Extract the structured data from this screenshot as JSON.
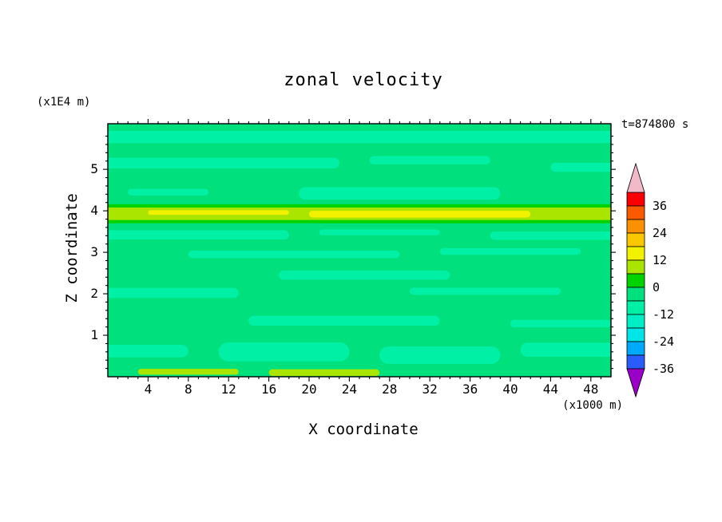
{
  "title": "zonal velocity",
  "annotations": {
    "time_label": "t=874800 s",
    "y_unit_label": "(x1E4 m)",
    "x_unit_label": "(x1000 m)"
  },
  "axes": {
    "xlabel": "X coordinate",
    "ylabel": "Z coordinate"
  },
  "chart_data": {
    "type": "heatmap",
    "title": "zonal velocity",
    "time_label": "t=874800 s",
    "xlabel": "X coordinate",
    "ylabel": "Z coordinate",
    "x_unit_label": "(x1000 m)",
    "y_unit_label": "(x1E4 m)",
    "xlim": [
      0,
      50
    ],
    "zlim": [
      0,
      6.1
    ],
    "grid": false,
    "x_ticks": [
      4,
      8,
      12,
      16,
      20,
      24,
      28,
      32,
      36,
      40,
      44,
      48
    ],
    "y_ticks": [
      1,
      2,
      3,
      4,
      5
    ],
    "colorbar": {
      "labels": [
        "36",
        "24",
        "12",
        "0",
        "-12",
        "-24",
        "-36"
      ],
      "arrow_top_color": "#F2B9C8",
      "arrow_bottom_color": "#9B00C8",
      "segments": [
        {
          "from": 36,
          "to": 42,
          "color": "#FB0000"
        },
        {
          "from": 30,
          "to": 36,
          "color": "#FB5A00"
        },
        {
          "from": 24,
          "to": 30,
          "color": "#FB9100"
        },
        {
          "from": 18,
          "to": 24,
          "color": "#FBC800"
        },
        {
          "from": 12,
          "to": 18,
          "color": "#F2F200"
        },
        {
          "from": 6,
          "to": 12,
          "color": "#AAE500"
        },
        {
          "from": 0,
          "to": 6,
          "color": "#00D300"
        },
        {
          "from": -6,
          "to": 0,
          "color": "#00E07D"
        },
        {
          "from": -12,
          "to": -6,
          "color": "#00F0A6"
        },
        {
          "from": -18,
          "to": -12,
          "color": "#00EEC6"
        },
        {
          "from": -24,
          "to": -18,
          "color": "#00E5E5"
        },
        {
          "from": -30,
          "to": -24,
          "color": "#00AAFB"
        },
        {
          "from": -36,
          "to": -30,
          "color": "#2A5CFB"
        }
      ]
    },
    "field": {
      "palette": {
        "base": {
          "level": "-6 to 0",
          "color": "#00E07D"
        },
        "light": {
          "level": "-12 to -6",
          "color": "#00F0A6"
        },
        "green": {
          "level": "0 to 6",
          "color": "#00D300"
        },
        "chartreuse": {
          "level": "6 to 12",
          "color": "#AAE500"
        },
        "yellow": {
          "level": "12 to 18",
          "color": "#F2F200"
        }
      },
      "base_fill": "base",
      "bands": [
        {
          "x0": -2,
          "x1": 52,
          "z": 5.78,
          "h": 0.3,
          "level": "light"
        },
        {
          "x0": -2,
          "x1": 23,
          "z": 5.15,
          "h": 0.26,
          "level": "light"
        },
        {
          "x0": 26,
          "x1": 38,
          "z": 5.22,
          "h": 0.2,
          "level": "light"
        },
        {
          "x0": 44,
          "x1": 52,
          "z": 5.05,
          "h": 0.22,
          "level": "light"
        },
        {
          "x0": 2,
          "x1": 10,
          "z": 4.45,
          "h": 0.16,
          "level": "light"
        },
        {
          "x0": 19,
          "x1": 39,
          "z": 4.42,
          "h": 0.3,
          "level": "light"
        },
        {
          "x0": -2,
          "x1": 52,
          "z": 3.93,
          "h": 0.46,
          "level": "green"
        },
        {
          "x0": -2,
          "x1": 52,
          "z": 3.93,
          "h": 0.3,
          "level": "chartreuse"
        },
        {
          "x0": 4,
          "x1": 18,
          "z": 3.96,
          "h": 0.11,
          "level": "yellow"
        },
        {
          "x0": 20,
          "x1": 42,
          "z": 3.92,
          "h": 0.16,
          "level": "yellow"
        },
        {
          "x0": -2,
          "x1": 18,
          "z": 3.42,
          "h": 0.22,
          "level": "light"
        },
        {
          "x0": 21,
          "x1": 33,
          "z": 3.48,
          "h": 0.14,
          "level": "light"
        },
        {
          "x0": 38,
          "x1": 52,
          "z": 3.4,
          "h": 0.2,
          "level": "light"
        },
        {
          "x0": 33,
          "x1": 47,
          "z": 3.02,
          "h": 0.16,
          "level": "light"
        },
        {
          "x0": 8,
          "x1": 29,
          "z": 2.95,
          "h": 0.18,
          "level": "light"
        },
        {
          "x0": 17,
          "x1": 34,
          "z": 2.45,
          "h": 0.22,
          "level": "light"
        },
        {
          "x0": -2,
          "x1": 13,
          "z": 2.02,
          "h": 0.24,
          "level": "light"
        },
        {
          "x0": 30,
          "x1": 45,
          "z": 2.06,
          "h": 0.17,
          "level": "light"
        },
        {
          "x0": 14,
          "x1": 33,
          "z": 1.35,
          "h": 0.24,
          "level": "light"
        },
        {
          "x0": 40,
          "x1": 50,
          "z": 1.28,
          "h": 0.18,
          "level": "light"
        },
        {
          "x0": -2,
          "x1": 8,
          "z": 0.62,
          "h": 0.3,
          "level": "light"
        },
        {
          "x0": 11,
          "x1": 24,
          "z": 0.6,
          "h": 0.46,
          "level": "light"
        },
        {
          "x0": 27,
          "x1": 39,
          "z": 0.52,
          "h": 0.42,
          "level": "light"
        },
        {
          "x0": 41,
          "x1": 52,
          "z": 0.65,
          "h": 0.34,
          "level": "light"
        },
        {
          "x0": 3,
          "x1": 13,
          "z": 0.12,
          "h": 0.14,
          "level": "chartreuse"
        },
        {
          "x0": 16,
          "x1": 27,
          "z": 0.1,
          "h": 0.16,
          "level": "chartreuse"
        }
      ]
    }
  }
}
